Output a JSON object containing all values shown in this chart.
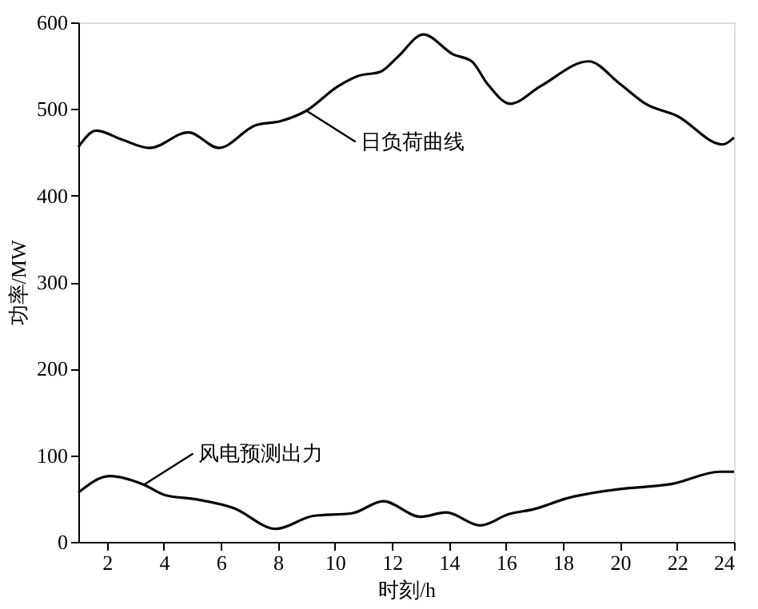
{
  "chart_data": {
    "type": "line",
    "xlabel": "时刻/h",
    "ylabel": "功率/MW",
    "xlim": [
      1,
      24
    ],
    "xticks": [
      2,
      4,
      6,
      8,
      10,
      12,
      14,
      16,
      18,
      20,
      22,
      24
    ],
    "ylim": [
      0,
      600
    ],
    "yticks": [
      0,
      100,
      200,
      300,
      400,
      500,
      600
    ],
    "grid": false,
    "marker": "none",
    "line_style": "solid",
    "series": [
      {
        "color": "#000000",
        "x": [
          1,
          1.63,
          2.5,
          3.5,
          4.86,
          5.93,
          7.2,
          8.1,
          9.0,
          10.1,
          10.8,
          11.6,
          12.2,
          13.1,
          14.15,
          14.8,
          15.35,
          16.15,
          17.2,
          18.9,
          20.0,
          20.9,
          22.0,
          23.6,
          24
        ],
        "values": [
          456,
          475,
          465,
          455,
          473,
          455,
          481,
          486,
          498,
          526,
          538,
          543,
          560,
          586,
          563,
          555,
          529,
          506,
          526,
          555,
          529,
          506,
          492,
          459,
          467
        ]
      },
      {
        "color": "#000000",
        "x": [
          1,
          2.1,
          3.3,
          4.04,
          5.15,
          6.45,
          7.93,
          9.24,
          10.6,
          11.7,
          13.0,
          13.9,
          15.1,
          16.1,
          17.0,
          18.1,
          20.0,
          21.85,
          23.5,
          24
        ],
        "values": [
          57,
          76,
          66,
          54,
          49,
          39,
          15,
          30,
          33,
          47,
          29,
          34,
          19,
          32,
          38,
          50,
          61,
          67,
          81,
          81
        ]
      }
    ],
    "annotations": [
      {
        "text": "日负荷曲线",
        "x": 9.0,
        "y": 498
      },
      {
        "text": "风电预测出力",
        "x": 3.3,
        "y": 66
      }
    ]
  }
}
